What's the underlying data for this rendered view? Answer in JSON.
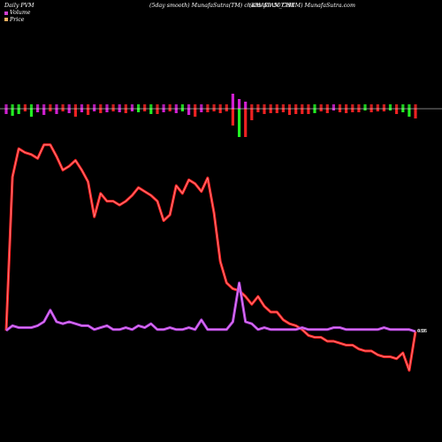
{
  "header": {
    "left": "Daily PVM",
    "middle": "(5day smooth) MunafaSutra(TM) charts for 507794",
    "right": "(KHAITAN_CHEM) MunafaSutra.com"
  },
  "legend": [
    {
      "label": "Volume",
      "color": "#d040d0"
    },
    {
      "label": "Price",
      "color": "#f0b060"
    }
  ],
  "colors": {
    "background": "#000000",
    "price_line": "#ff2020",
    "price_glow": "#ff9090",
    "volume_line": "#b040d8",
    "volume_glow": "#f090ff",
    "bar_up": "#22ee22",
    "bar_down": "#ee2222",
    "bar_neutral": "#d020d0",
    "baseline": "#ffffff"
  },
  "chart_data": {
    "type": "line",
    "x": [
      1,
      2,
      3,
      4,
      5,
      6,
      7,
      8,
      9,
      10,
      11,
      12,
      13,
      14,
      15,
      16,
      17,
      18,
      19,
      20,
      21,
      22,
      23,
      24,
      25,
      26,
      27,
      28,
      29,
      30,
      31,
      32,
      33,
      34,
      35,
      36,
      37,
      38,
      39,
      40,
      41,
      42,
      43,
      44,
      45,
      46,
      47,
      48,
      49,
      50,
      51,
      52,
      53,
      54,
      55,
      56,
      57,
      58,
      59,
      60,
      61,
      62,
      63,
      64,
      65,
      66
    ],
    "series": [
      {
        "name": "Price",
        "values": [
          0.5,
          79.5,
          94,
          92,
          91,
          89,
          96,
          96,
          90,
          83,
          85,
          88,
          83,
          77,
          59,
          71,
          67,
          67,
          65,
          67,
          70,
          74,
          72,
          70,
          67,
          57,
          60,
          75,
          71,
          78,
          76,
          72,
          79,
          61,
          36,
          25,
          22,
          21,
          18,
          14,
          18,
          13,
          10,
          10,
          6,
          4,
          3,
          1,
          -2,
          -3,
          -3,
          -5,
          -5,
          -6,
          -7,
          -7,
          -9,
          -10,
          -10,
          -12,
          -13,
          -13,
          -14,
          -11,
          -20,
          0
        ]
      },
      {
        "name": "Volume",
        "values": [
          0.5,
          3,
          2,
          2,
          2,
          3,
          5,
          11,
          5,
          4,
          5,
          4,
          3,
          3,
          1,
          2,
          3,
          1,
          1,
          2,
          1,
          3,
          2,
          4,
          1,
          1,
          2,
          1,
          1,
          2,
          1,
          6,
          1,
          1,
          1,
          1,
          5,
          25,
          5,
          4,
          1,
          2,
          1,
          1,
          1,
          1,
          1,
          2,
          1,
          1,
          1,
          1,
          2,
          2,
          1,
          1,
          1,
          1,
          1,
          1,
          2,
          1,
          1,
          1,
          1,
          0
        ]
      }
    ],
    "volume_bars": {
      "values": [
        -6,
        -8,
        -6,
        -3,
        -9,
        -4,
        -7,
        -3,
        -6,
        -3,
        -5,
        -9,
        -4,
        -7,
        -3,
        -5,
        -4,
        -3,
        -4,
        -5,
        -3,
        -4,
        -3,
        -6,
        -6,
        -4,
        -3,
        -5,
        -3,
        -7,
        -9,
        -4,
        -4,
        -3,
        -5,
        -3,
        -3,
        -2,
        -6,
        -3,
        -4,
        -6,
        -5,
        -5,
        -4,
        -7,
        -6,
        -6,
        -6,
        -5,
        -3,
        -5,
        -2,
        -4,
        -5,
        -4,
        -4,
        -2,
        -4,
        -3,
        -3,
        -2,
        -6,
        -4,
        -9,
        -11
      ],
      "colors": [
        "#d020d0",
        "#22ee22",
        "#22ee22",
        "#ee2222",
        "#22ee22",
        "#d020d0",
        "#d020d0",
        "#ee2222",
        "#d020d0",
        "#ee2222",
        "#d020d0",
        "#ee2222",
        "#d020d0",
        "#ee2222",
        "#d020d0",
        "#ee2222",
        "#d020d0",
        "#ee2222",
        "#d020d0",
        "#ee2222",
        "#d020d0",
        "#22ee22",
        "#ee2222",
        "#22ee22",
        "#ee2222",
        "#d020d0",
        "#ee2222",
        "#d020d0",
        "#22ee22",
        "#d020d0",
        "#ee2222",
        "#d020d0",
        "#ee2222",
        "#ee2222",
        "#ee2222",
        "#ee2222",
        "#ee2222",
        "#22ee22",
        "#ee2222",
        "#ee2222",
        "#ee2222",
        "#ee2222",
        "#ee2222",
        "#ee2222",
        "#ee2222",
        "#ee2222",
        "#ee2222",
        "#ee2222",
        "#ee2222",
        "#22ee22",
        "#ee2222",
        "#ee2222",
        "#d020d0",
        "#ee2222",
        "#ee2222",
        "#ee2222",
        "#ee2222",
        "#22ee22",
        "#ee2222",
        "#ee2222",
        "#ee2222",
        "#22ee22",
        "#ee2222",
        "#22ee22",
        "#22ee22",
        "#ee2222"
      ]
    },
    "bars_spike": {
      "positive": [
        0,
        0,
        0,
        0,
        0,
        0,
        0,
        0,
        0,
        0,
        0,
        0,
        0,
        0,
        0,
        0,
        0,
        0,
        0,
        0,
        0,
        0,
        0,
        0,
        0,
        0,
        0,
        0,
        0,
        0,
        0,
        0,
        0,
        0,
        0,
        0,
        12,
        6,
        3,
        0,
        0,
        0,
        0,
        0,
        0,
        0,
        0,
        0,
        0,
        0,
        0,
        0,
        0,
        0,
        0,
        0,
        0,
        0,
        0,
        0,
        0,
        0,
        0,
        0,
        0,
        0
      ],
      "negative_extra": [
        0,
        0,
        0,
        0,
        0,
        0,
        0,
        0,
        0,
        0,
        0,
        0,
        0,
        0,
        0,
        0,
        0,
        0,
        0,
        0,
        0,
        0,
        0,
        0,
        0,
        0,
        0,
        0,
        0,
        0,
        0,
        0,
        0,
        0,
        0,
        0,
        16,
        30,
        26,
        10,
        0,
        0,
        0,
        0,
        0,
        0,
        0,
        0,
        0,
        0,
        0,
        0,
        0,
        0,
        0,
        0,
        0,
        0,
        0,
        0,
        0,
        0,
        0,
        0,
        0,
        0
      ]
    },
    "end_labels": [
      "0.96",
      "485"
    ],
    "grid": false
  }
}
